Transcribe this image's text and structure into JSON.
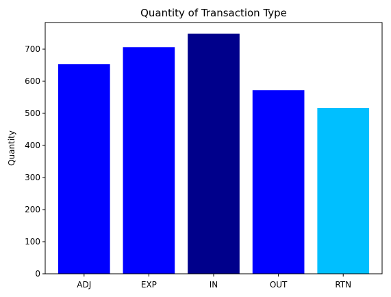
{
  "chart_data": {
    "type": "bar",
    "title": "Quantity of Transaction Type",
    "xlabel": "",
    "ylabel": "Quantity",
    "categories": [
      "ADJ",
      "EXP",
      "IN",
      "OUT",
      "RTN"
    ],
    "values": [
      653,
      706,
      748,
      572,
      517
    ],
    "colors": [
      "#0000ff",
      "#0000ff",
      "#00008b",
      "#0000ff",
      "#00bfff"
    ],
    "ylim": [
      0,
      783
    ],
    "yticks": [
      0,
      100,
      200,
      300,
      400,
      500,
      600,
      700
    ],
    "grid": false
  }
}
